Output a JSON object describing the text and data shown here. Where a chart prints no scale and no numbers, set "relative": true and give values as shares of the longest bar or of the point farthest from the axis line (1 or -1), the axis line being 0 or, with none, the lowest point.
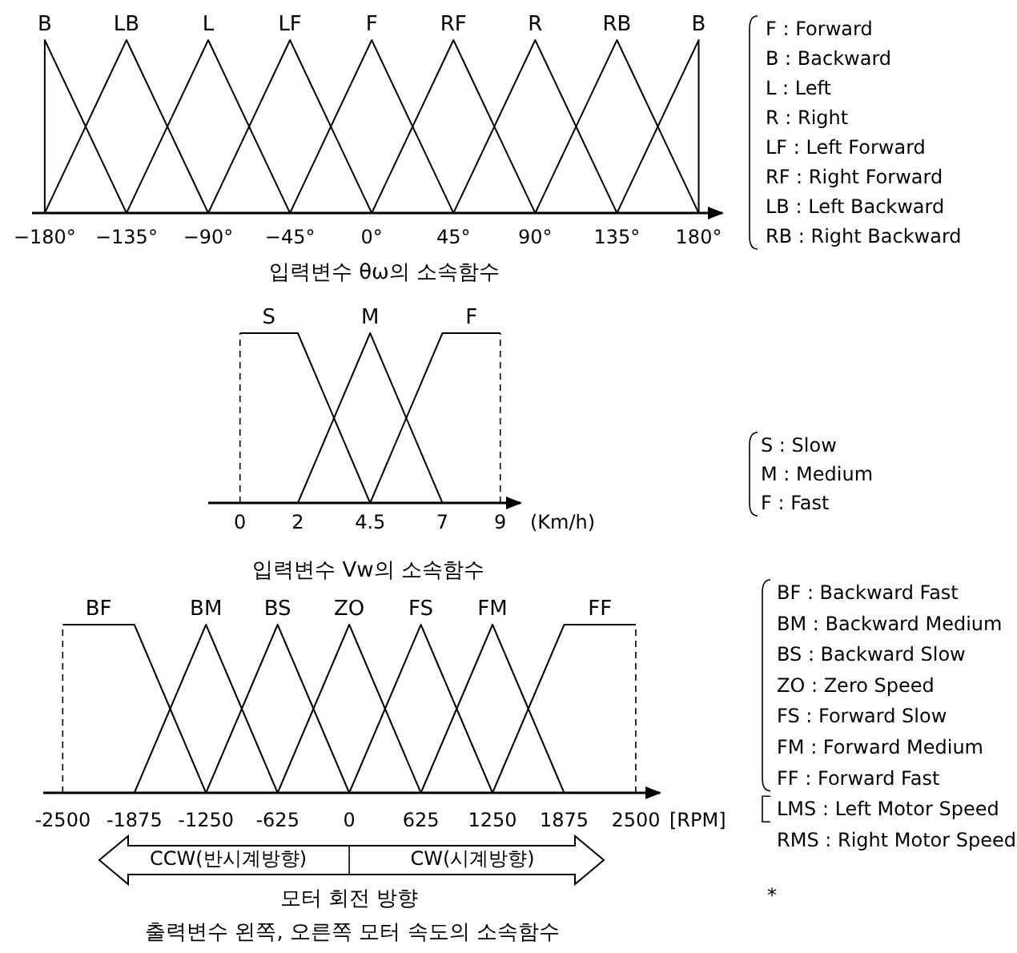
{
  "chart_data": [
    {
      "type": "line",
      "relative": true,
      "title": "입력변수 θω의 소속함수",
      "xlim": [
        -187,
        193
      ],
      "xticks": [
        {
          "value": -180,
          "label": "−180°"
        },
        {
          "value": -135,
          "label": "−135°"
        },
        {
          "value": -90,
          "label": "−90°"
        },
        {
          "value": -45,
          "label": "−45°"
        },
        {
          "value": 0,
          "label": "0°"
        },
        {
          "value": 45,
          "label": "45°"
        },
        {
          "value": 90,
          "label": "90°"
        },
        {
          "value": 135,
          "label": "135°"
        },
        {
          "value": 180,
          "label": "180°"
        }
      ],
      "series": [
        {
          "name": "B",
          "color": "#000000",
          "x": [
            -180,
            -180,
            -135
          ],
          "values": [
            0,
            1,
            0
          ]
        },
        {
          "name": "LB",
          "color": "#000000",
          "x": [
            -180,
            -135,
            -90
          ],
          "values": [
            0,
            1,
            0
          ]
        },
        {
          "name": "L",
          "color": "#000000",
          "x": [
            -135,
            -90,
            -45
          ],
          "values": [
            0,
            1,
            0
          ]
        },
        {
          "name": "LF",
          "color": "#000000",
          "x": [
            -90,
            -45,
            0
          ],
          "values": [
            0,
            1,
            0
          ]
        },
        {
          "name": "F",
          "color": "#000000",
          "x": [
            -45,
            0,
            45
          ],
          "values": [
            0,
            1,
            0
          ]
        },
        {
          "name": "RF",
          "color": "#000000",
          "x": [
            0,
            45,
            90
          ],
          "values": [
            0,
            1,
            0
          ]
        },
        {
          "name": "R",
          "color": "#000000",
          "x": [
            45,
            90,
            135
          ],
          "values": [
            0,
            1,
            0
          ]
        },
        {
          "name": "RB",
          "color": "#000000",
          "x": [
            90,
            135,
            180
          ],
          "values": [
            0,
            1,
            0
          ]
        },
        {
          "name": "B",
          "color": "#000000",
          "x": [
            135,
            180,
            180
          ],
          "values": [
            0,
            1,
            0
          ]
        }
      ],
      "annotations": [
        "F : Forward",
        "B : Backward",
        "L : Left",
        "R : Right",
        "LF : Left Forward",
        "RF : Right Forward",
        "LB : Left Backward",
        "RB : Right Backward"
      ]
    },
    {
      "type": "line",
      "relative": true,
      "title": "입력변수 Vw의 소속함수",
      "xlabel": "(Km/h)",
      "xlim": [
        -1.1,
        9.7
      ],
      "xticks": [
        0,
        2,
        4.5,
        7,
        9
      ],
      "series": [
        {
          "name": "S",
          "color": "#000000",
          "x": [
            0,
            2,
            4.5
          ],
          "values": [
            1,
            1,
            0
          ]
        },
        {
          "name": "M",
          "color": "#000000",
          "x": [
            2,
            4.5,
            7
          ],
          "values": [
            0,
            1,
            0
          ]
        },
        {
          "name": "F",
          "color": "#000000",
          "x": [
            4.5,
            7,
            9
          ],
          "values": [
            0,
            1,
            1
          ]
        }
      ],
      "ref_lines": [
        {
          "axis": "x",
          "value": 0,
          "line_style": "dashed",
          "color": "#000000"
        },
        {
          "axis": "x",
          "value": 9,
          "line_style": "dashed",
          "color": "#000000"
        }
      ],
      "annotations": [
        "S : Slow",
        "M : Medium",
        "F : Fast"
      ]
    },
    {
      "type": "line",
      "relative": true,
      "title": "출력변수 왼쪽, 오른쪽 모터 속도의 소속함수",
      "xlabel": "[RPM]",
      "xlim": [
        -2670,
        2710
      ],
      "xticks": [
        -2500,
        -1875,
        -1250,
        -625,
        0,
        625,
        1250,
        1875,
        2500
      ],
      "series": [
        {
          "name": "BF",
          "color": "#000000",
          "x": [
            -2500,
            -1875,
            -1250
          ],
          "values": [
            1,
            1,
            0
          ]
        },
        {
          "name": "BM",
          "color": "#000000",
          "x": [
            -1875,
            -1250,
            -625
          ],
          "values": [
            0,
            1,
            0
          ]
        },
        {
          "name": "BS",
          "color": "#000000",
          "x": [
            -1250,
            -625,
            0
          ],
          "values": [
            0,
            1,
            0
          ]
        },
        {
          "name": "ZO",
          "color": "#000000",
          "x": [
            -625,
            0,
            625
          ],
          "values": [
            0,
            1,
            0
          ]
        },
        {
          "name": "FS",
          "color": "#000000",
          "x": [
            0,
            625,
            1250
          ],
          "values": [
            0,
            1,
            0
          ]
        },
        {
          "name": "FM",
          "color": "#000000",
          "x": [
            625,
            1250,
            1875
          ],
          "values": [
            0,
            1,
            0
          ]
        },
        {
          "name": "FF",
          "color": "#000000",
          "x": [
            1250,
            1875,
            2500
          ],
          "values": [
            0,
            1,
            1
          ]
        }
      ],
      "ref_lines": [
        {
          "axis": "x",
          "value": -2500,
          "line_style": "dashed",
          "color": "#000000"
        },
        {
          "axis": "x",
          "value": 2500,
          "line_style": "dashed",
          "color": "#000000"
        }
      ],
      "annotations": [
        "BF : Backward Fast",
        "BM : Backward Medium",
        "BS : Backward Slow",
        "ZO : Zero Speed",
        "FS : Forward Slow",
        "FM : Forward Medium",
        "FF : Forward Fast",
        "LMS : Left Motor Speed",
        "RMS : Right Motor Speed",
        "*",
        "CCW(반시계방향)",
        "CW(시계방향)",
        "모터 회전 방향"
      ]
    }
  ]
}
